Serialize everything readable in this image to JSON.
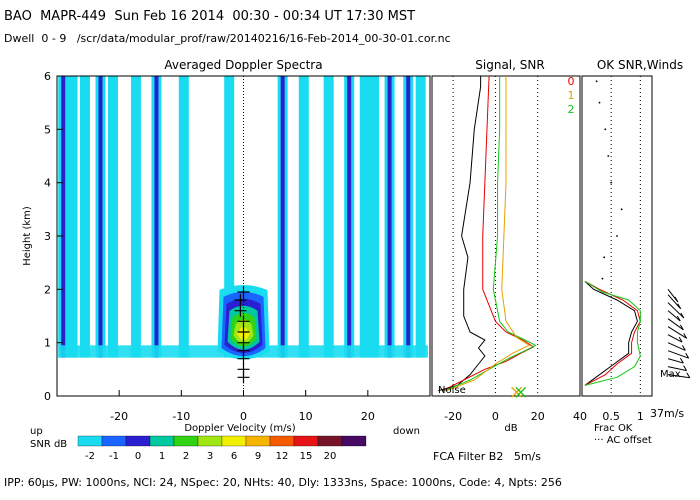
{
  "header": {
    "station": "BAO",
    "radar": "MAPR-449",
    "date": "Sun Feb 16 2014",
    "time_range": "00:30 - 00:34 UT",
    "local_time": "17:30 MST",
    "dwell_label": "Dwell",
    "dwell_range": "0 - 9",
    "file_path": "/scr/data/modular_prof/raw/20140216/16-Feb-2014_00-30-01.cor.nc"
  },
  "chart_data": [
    {
      "type": "heatmap",
      "title": "Averaged Doppler Spectra",
      "xlabel": "Doppler Velocity (m/s)",
      "ylabel": "Height (km)",
      "xlim": [
        -30,
        30
      ],
      "ylim": [
        0,
        6
      ],
      "xticks": [
        -20,
        -10,
        0,
        10,
        20
      ],
      "yticks": [
        0,
        1,
        2,
        3,
        4,
        5,
        6
      ],
      "x_end_labels": {
        "left": "up",
        "right": "down"
      },
      "colorbar": {
        "label": "SNR dB",
        "tick_labels": [
          "-2",
          "-1",
          "0",
          "1",
          "2",
          "3",
          "6",
          "9",
          "12",
          "15",
          "20"
        ],
        "colors": [
          "#19dcf0",
          "#1a64ff",
          "#2a20d2",
          "#00c8a0",
          "#32d214",
          "#a0e614",
          "#f0f000",
          "#f5b400",
          "#f55a00",
          "#e61414",
          "#781428",
          "#460a64"
        ]
      },
      "noise_stripes_velocity": [
        -29,
        -27.5,
        -25.5,
        -23,
        -21,
        -17.3,
        -14,
        -9.6,
        -2.3,
        6.3,
        9.7,
        13.7,
        17,
        19.5,
        21,
        23.5,
        26.5,
        28.5
      ],
      "signal_core": {
        "velocity_center": 0,
        "height_top_km": 2.1,
        "height_bottom_km": 0.65
      },
      "peak_markers": [
        {
          "height_km": 0.35,
          "velocity": 0
        },
        {
          "height_km": 0.5,
          "velocity": 0
        },
        {
          "height_km": 0.7,
          "velocity": 0
        },
        {
          "height_km": 0.85,
          "velocity": 0
        },
        {
          "height_km": 1.0,
          "velocity": 0
        },
        {
          "height_km": 1.2,
          "velocity": 0
        },
        {
          "height_km": 1.4,
          "velocity": 0
        },
        {
          "height_km": 1.6,
          "velocity": -0.5
        },
        {
          "height_km": 1.8,
          "velocity": -0.5
        },
        {
          "height_km": 1.95,
          "velocity": 0
        }
      ]
    },
    {
      "type": "line",
      "title": "Signal, SNR",
      "xlabel": "dB",
      "xlim": [
        -30,
        40
      ],
      "ylim": [
        0,
        6
      ],
      "xticks": [
        -20,
        0,
        20,
        40
      ],
      "noise_label": "Noise",
      "legend": [
        "0",
        "1",
        "2"
      ],
      "series": [
        {
          "name": "0",
          "color": "#000000",
          "y": [
            0.1,
            0.2,
            0.4,
            0.6,
            0.75,
            0.9,
            1.05,
            1.2,
            1.5,
            1.8,
            2.0,
            2.6,
            3.0,
            4.0,
            5.0,
            5.8,
            6.0
          ],
          "x": [
            -27,
            -18,
            -12,
            -8,
            -5,
            -8,
            -5,
            -12,
            -15,
            -15,
            -15,
            -13,
            -16,
            -12,
            -10,
            -7,
            -7
          ]
        },
        {
          "name": "1",
          "color": "#e60000",
          "y": [
            0.1,
            0.3,
            0.5,
            0.65,
            0.8,
            0.92,
            1.05,
            1.2,
            1.4,
            1.7,
            2.0,
            2.5,
            3.0,
            4.0,
            5.0,
            6.0
          ],
          "x": [
            -25,
            -15,
            -5,
            5,
            12,
            18,
            13,
            5,
            0,
            -3,
            -6,
            -6,
            -6,
            -5,
            -4,
            -3
          ]
        },
        {
          "name": "2",
          "color": "#14c814",
          "y": [
            0.1,
            0.3,
            0.5,
            0.7,
            0.85,
            0.95,
            1.05,
            1.2,
            1.4,
            1.8,
            2.0,
            2.5,
            3.0,
            4.0,
            5.0,
            6.0
          ],
          "x": [
            -24,
            -12,
            -3,
            6,
            14,
            19,
            14,
            6,
            2,
            0,
            -1,
            0,
            1,
            1,
            2,
            2
          ]
        },
        {
          "name": "noise",
          "color": "#e6a000",
          "y": [
            0.1,
            0.3,
            0.6,
            0.8,
            0.95,
            1.1,
            1.4,
            2.0,
            3.0,
            4.0,
            5.0,
            6.0
          ],
          "x": [
            -23,
            -10,
            0,
            8,
            16,
            10,
            5,
            3,
            4,
            5,
            5,
            5
          ]
        }
      ],
      "x_marks": [
        {
          "height_km": 0.07,
          "x": 10
        },
        {
          "height_km": 0.07,
          "x": 12
        }
      ]
    },
    {
      "type": "line",
      "title": "OK SNR,Winds",
      "xlabel": "Frac OK",
      "xlim": [
        0,
        1.2
      ],
      "ylim": [
        0,
        6
      ],
      "xticks": [
        0.5,
        1
      ],
      "xtick_labels": [
        "0.5",
        "1"
      ],
      "legend_label": "AC offset",
      "series": [
        {
          "name": "0",
          "color": "#000000",
          "y": [
            0.2,
            0.4,
            0.6,
            0.8,
            1.0,
            1.2,
            1.4,
            1.6,
            1.8,
            2.0,
            2.15
          ],
          "x": [
            0.05,
            0.3,
            0.55,
            0.8,
            0.8,
            0.85,
            0.95,
            0.9,
            0.6,
            0.2,
            0.05
          ]
        },
        {
          "name": "1",
          "color": "#e60000",
          "y": [
            0.2,
            0.4,
            0.6,
            0.8,
            1.0,
            1.2,
            1.4,
            1.6,
            1.8,
            2.0,
            2.15
          ],
          "x": [
            0.05,
            0.4,
            0.6,
            0.85,
            0.85,
            0.9,
            1.0,
            0.95,
            0.7,
            0.3,
            0.05
          ]
        },
        {
          "name": "2",
          "color": "#14c814",
          "y": [
            0.2,
            0.35,
            0.55,
            0.75,
            1.0,
            1.2,
            1.4,
            1.6,
            1.8,
            1.95,
            2.15
          ],
          "x": [
            0.05,
            0.6,
            0.9,
            1.0,
            0.95,
            0.95,
            1.0,
            1.0,
            0.8,
            0.35,
            0.05
          ]
        },
        {
          "name": "offset",
          "color": "#000000",
          "y": [
            2.2,
            2.6,
            3.0,
            3.5,
            4.0,
            4.5,
            5.0,
            5.5,
            5.9
          ],
          "x": [
            0.35,
            0.38,
            0.6,
            0.68,
            0.5,
            0.45,
            0.4,
            0.3,
            0.25
          ]
        }
      ]
    },
    {
      "type": "line",
      "title": "Winds",
      "max_label": "Max",
      "max_value_label": "37m/s",
      "barbs_height_km": [
        0.4,
        0.55,
        0.7,
        0.85,
        1.0,
        1.15,
        1.3,
        1.45,
        1.6,
        1.75,
        1.9,
        2.0
      ]
    }
  ],
  "footer": {
    "fca_filter": "FCA Filter B2",
    "fca_speed": "5m/s",
    "params": "IPP: 60μs, PW: 1000ns, NCI: 24, NSpec: 20, NHts: 40, Dly: 1333ns, Space: 1000ns, Code: 4, Npts: 256"
  }
}
